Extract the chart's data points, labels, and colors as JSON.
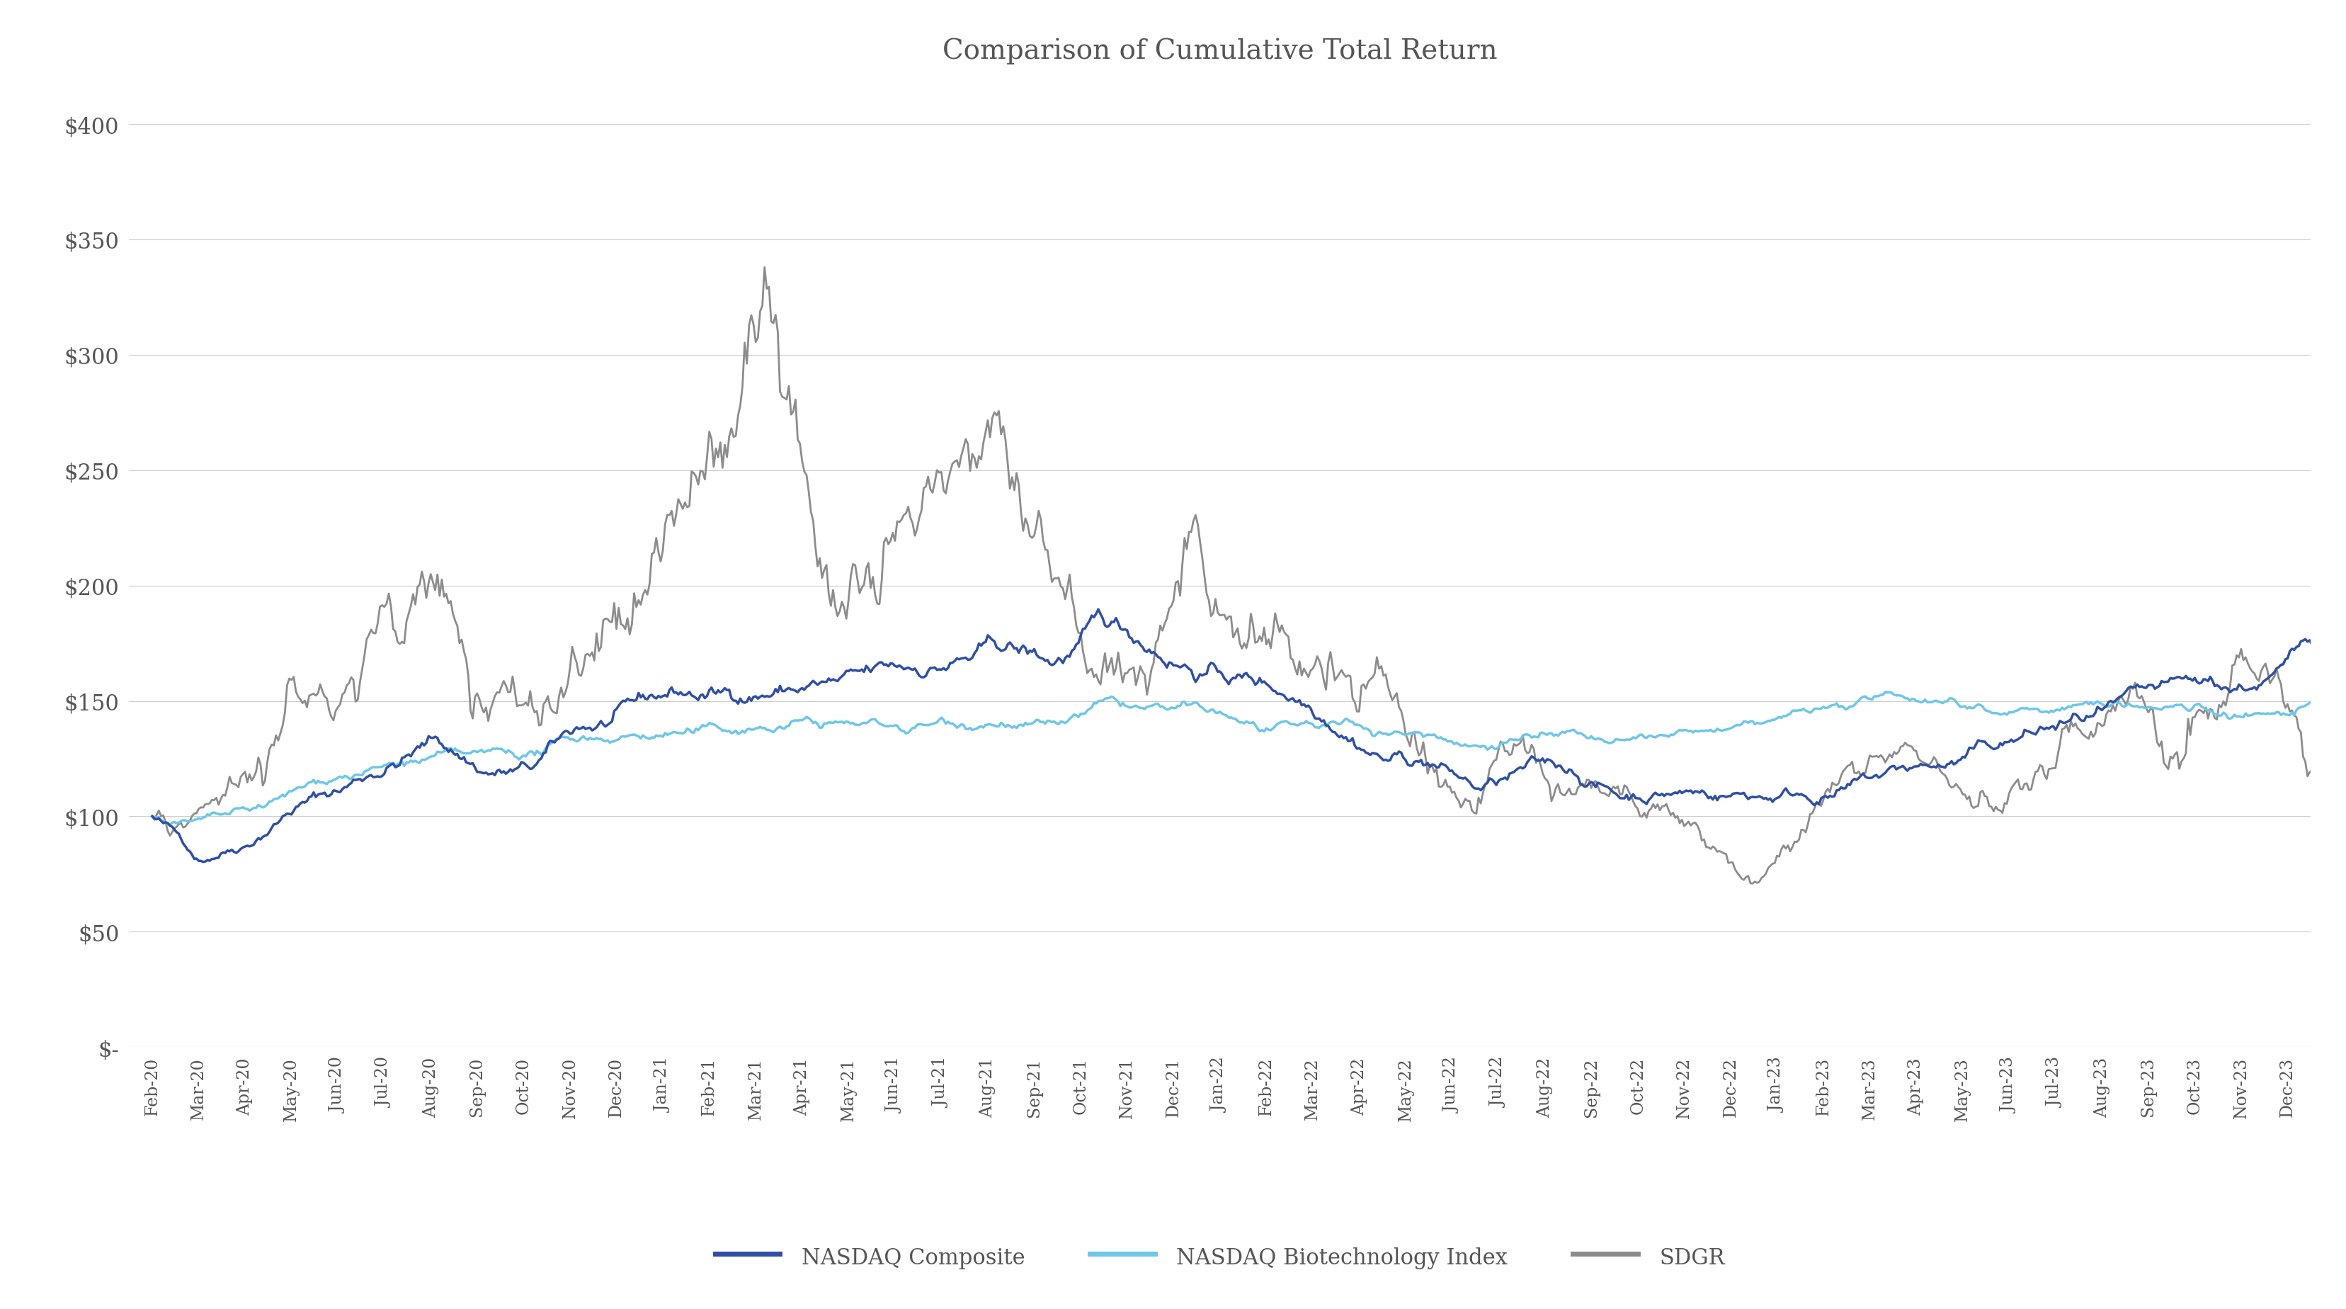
{
  "title": "Comparison of Cumulative Total Return",
  "title_fontsize": 28,
  "background_color": "#ffffff",
  "ylim": [
    0,
    420
  ],
  "yticks": [
    0,
    50,
    100,
    150,
    200,
    250,
    300,
    350,
    400
  ],
  "ytick_labels": [
    "$-",
    "$50",
    "$100",
    "$150",
    "$200",
    "$250",
    "$300",
    "$350",
    "$400"
  ],
  "line_colors": {
    "nasdaq": "#2E4FA3",
    "biotech": "#6EC6E8",
    "sdgr": "#8C8C8C"
  },
  "line_widths": {
    "nasdaq": 2.5,
    "biotech": 2.5,
    "sdgr": 2.0
  },
  "legend_labels": [
    "NASDAQ Composite",
    "NASDAQ Biotechnology Index",
    "SDGR"
  ],
  "x_tick_months": [
    "Feb-20",
    "Mar-20",
    "Apr-20",
    "May-20",
    "Jun-20",
    "Jul-20",
    "Aug-20",
    "Sep-20",
    "Oct-20",
    "Nov-20",
    "Dec-20",
    "Jan-21",
    "Feb-21",
    "Mar-21",
    "Apr-21",
    "May-21",
    "Jun-21",
    "Jul-21",
    "Aug-21",
    "Sep-21",
    "Oct-21",
    "Nov-21",
    "Dec-21",
    "Jan-22",
    "Feb-22",
    "Mar-22",
    "Apr-22",
    "May-22",
    "Jun-22",
    "Jul-22",
    "Aug-22",
    "Sep-22",
    "Oct-22",
    "Nov-22",
    "Dec-22",
    "Jan-23",
    "Feb-23",
    "Mar-23",
    "Apr-23",
    "May-23",
    "Jun-23",
    "Jul-23",
    "Aug-23",
    "Sep-23",
    "Oct-23",
    "Nov-23",
    "Dec-23"
  ],
  "grid_color": "#cccccc",
  "text_color": "#555555",
  "font_family": "serif",
  "days_per_month": 21
}
